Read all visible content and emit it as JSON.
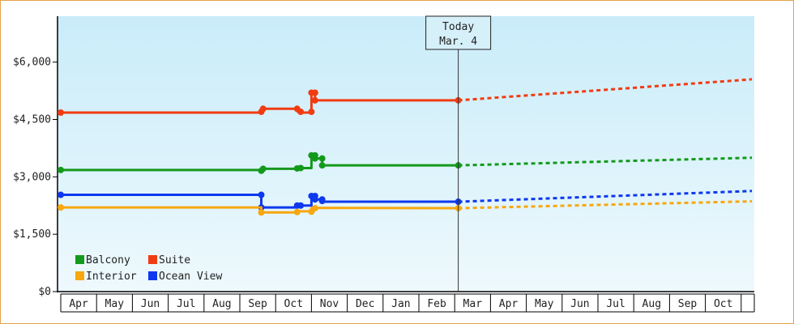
{
  "chart_data": {
    "type": "line",
    "ylim": [
      0,
      7200
    ],
    "y_ticks": [
      0,
      1500,
      3000,
      4500,
      6000
    ],
    "y_tick_labels": [
      "$0",
      "$1,500",
      "$3,000",
      "$4,500",
      "$6,000"
    ],
    "x_tick_labels": [
      "Apr",
      "May",
      "Jun",
      "Jul",
      "Aug",
      "Sep",
      "Oct",
      "Nov",
      "Dec",
      "Jan",
      "Feb",
      "Mar",
      "Apr",
      "May",
      "Jun",
      "Jul",
      "Aug",
      "Sep",
      "Oct"
    ],
    "x_range_months": [
      0,
      19.3
    ],
    "today": {
      "line1": "Today",
      "line2": "Mar. 4",
      "x": 11.1
    },
    "background_gradient": [
      "#c9ecf9",
      "#eef9fd"
    ],
    "series": [
      {
        "name": "Suite",
        "color": "#f03c12",
        "history": [
          [
            0,
            4680
          ],
          [
            5.6,
            4680
          ],
          [
            5.6,
            4700
          ],
          [
            5.65,
            4780
          ],
          [
            6.6,
            4780
          ],
          [
            6.62,
            4700
          ],
          [
            6.7,
            4680
          ],
          [
            7.0,
            4680
          ],
          [
            7.0,
            5200
          ],
          [
            7.1,
            5200
          ],
          [
            7.1,
            5000
          ],
          [
            11.1,
            5000
          ]
        ],
        "markers": [
          [
            0,
            4680
          ],
          [
            5.6,
            4700
          ],
          [
            5.65,
            4780
          ],
          [
            6.6,
            4780
          ],
          [
            6.7,
            4700
          ],
          [
            7.0,
            4700
          ],
          [
            7.0,
            5200
          ],
          [
            7.1,
            5200
          ],
          [
            7.1,
            5000
          ],
          [
            11.1,
            5000
          ]
        ],
        "forecast": [
          [
            11.1,
            5000
          ],
          [
            19.3,
            5550
          ]
        ]
      },
      {
        "name": "Balcony",
        "color": "#13991c",
        "history": [
          [
            0,
            3180
          ],
          [
            5.6,
            3180
          ],
          [
            5.6,
            3160
          ],
          [
            5.65,
            3210
          ],
          [
            6.6,
            3210
          ],
          [
            6.62,
            3230
          ],
          [
            7.0,
            3230
          ],
          [
            7.0,
            3560
          ],
          [
            7.1,
            3560
          ],
          [
            7.1,
            3480
          ],
          [
            7.3,
            3480
          ],
          [
            7.3,
            3300
          ],
          [
            11.1,
            3300
          ]
        ],
        "markers": [
          [
            0,
            3180
          ],
          [
            5.6,
            3160
          ],
          [
            5.65,
            3210
          ],
          [
            6.6,
            3220
          ],
          [
            6.7,
            3230
          ],
          [
            7.0,
            3560
          ],
          [
            7.1,
            3560
          ],
          [
            7.1,
            3480
          ],
          [
            7.3,
            3480
          ],
          [
            7.3,
            3300
          ],
          [
            11.1,
            3300
          ]
        ],
        "forecast": [
          [
            11.1,
            3300
          ],
          [
            19.3,
            3500
          ]
        ]
      },
      {
        "name": "Ocean View",
        "color": "#0d38ee",
        "history": [
          [
            0,
            2530
          ],
          [
            5.6,
            2530
          ],
          [
            5.6,
            2200
          ],
          [
            6.6,
            2200
          ],
          [
            6.62,
            2250
          ],
          [
            7.0,
            2250
          ],
          [
            7.0,
            2500
          ],
          [
            7.1,
            2500
          ],
          [
            7.1,
            2410
          ],
          [
            7.3,
            2410
          ],
          [
            7.3,
            2350
          ],
          [
            11.1,
            2350
          ]
        ],
        "markers": [
          [
            0,
            2530
          ],
          [
            5.6,
            2530
          ],
          [
            5.6,
            2200
          ],
          [
            6.6,
            2250
          ],
          [
            6.7,
            2250
          ],
          [
            7.0,
            2500
          ],
          [
            7.1,
            2500
          ],
          [
            7.1,
            2410
          ],
          [
            7.3,
            2410
          ],
          [
            7.3,
            2370
          ],
          [
            11.1,
            2350
          ]
        ],
        "forecast": [
          [
            11.1,
            2350
          ],
          [
            19.3,
            2630
          ]
        ]
      },
      {
        "name": "Interior",
        "color": "#f7a70f",
        "history": [
          [
            0,
            2200
          ],
          [
            5.6,
            2200
          ],
          [
            5.6,
            2070
          ],
          [
            6.6,
            2070
          ],
          [
            6.62,
            2100
          ],
          [
            7.0,
            2100
          ],
          [
            7.0,
            2180
          ],
          [
            7.1,
            2180
          ],
          [
            7.1,
            2190
          ],
          [
            11.1,
            2180
          ]
        ],
        "markers": [
          [
            0,
            2200
          ],
          [
            5.6,
            2070
          ],
          [
            6.6,
            2080
          ],
          [
            7.0,
            2090
          ],
          [
            7.1,
            2180
          ],
          [
            11.1,
            2180
          ]
        ],
        "forecast": [
          [
            11.1,
            2180
          ],
          [
            19.3,
            2360
          ]
        ]
      }
    ],
    "legend": [
      {
        "name": "Balcony",
        "color": "#13991c"
      },
      {
        "name": "Suite",
        "color": "#f03c12"
      },
      {
        "name": "Interior",
        "color": "#f7a70f"
      },
      {
        "name": "Ocean View",
        "color": "#0d38ee"
      }
    ]
  }
}
